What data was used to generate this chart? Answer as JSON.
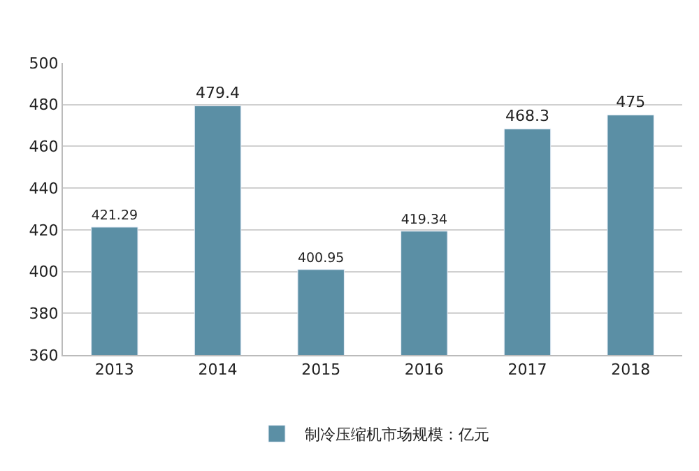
{
  "chart_data": {
    "type": "bar",
    "categories": [
      "2013",
      "2014",
      "2015",
      "2016",
      "2017",
      "2018"
    ],
    "series": [
      {
        "name": "制冷压缩机市场规模：亿元",
        "color": "#5b8fa5",
        "values": [
          421.29,
          479.4,
          400.95,
          419.34,
          468.3,
          475
        ]
      }
    ],
    "ylim": [
      360,
      500
    ],
    "yticks": [
      360,
      380,
      400,
      420,
      440,
      460,
      480,
      500
    ],
    "grid": "y",
    "legend": "bottom",
    "data_labels": true
  }
}
